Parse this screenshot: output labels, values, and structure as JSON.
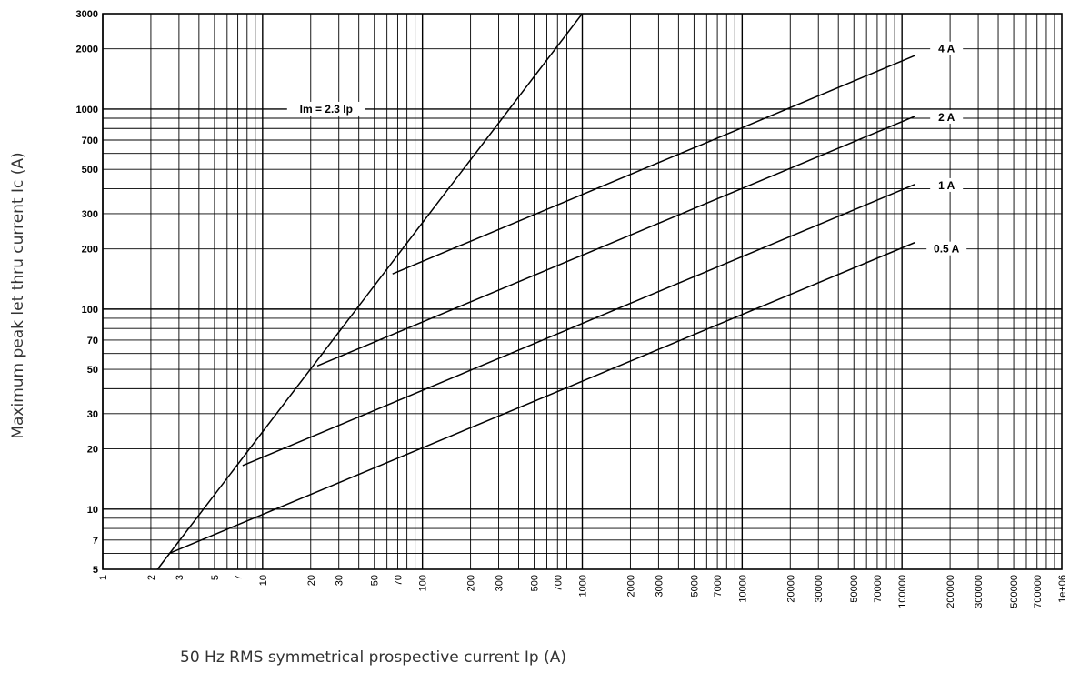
{
  "chart_data": {
    "type": "line",
    "xlabel": "50 Hz RMS symmetrical prospective current Ip (A)",
    "ylabel": "Maximum peak let thru current Ic (A)",
    "x_scale": "log",
    "y_scale": "log",
    "xlim": [
      1,
      1000000
    ],
    "ylim": [
      5,
      3000
    ],
    "grid": true,
    "x_ticks": [
      1,
      2,
      3,
      5,
      7,
      10,
      20,
      30,
      50,
      70,
      100,
      200,
      300,
      500,
      700,
      1000,
      2000,
      3000,
      5000,
      7000,
      10000,
      20000,
      30000,
      50000,
      70000,
      100000,
      200000,
      300000,
      500000,
      700000,
      1000000
    ],
    "x_tick_labels": [
      "1",
      "2",
      "3",
      "5",
      "7",
      "10",
      "20",
      "30",
      "50",
      "70",
      "100",
      "200",
      "300",
      "500",
      "700",
      "1000",
      "2000",
      "3000",
      "5000",
      "7000",
      "10000",
      "20000",
      "30000",
      "50000",
      "70000",
      "100000",
      "200000",
      "300000",
      "500000",
      "700000",
      "1e+06"
    ],
    "y_ticks": [
      5,
      7,
      10,
      20,
      30,
      50,
      70,
      100,
      200,
      300,
      500,
      700,
      1000,
      2000,
      3000
    ],
    "y_tick_labels": [
      "5",
      "7",
      "10",
      "20",
      "30",
      "50",
      "70",
      "100",
      "200",
      "300",
      "500",
      "700",
      "1000",
      "2000",
      "3000"
    ],
    "series": [
      {
        "name": "Im = 2.3 Ip",
        "points": [
          [
            2.2,
            5
          ],
          [
            1000,
            3000
          ]
        ]
      },
      {
        "name": "4 A",
        "points": [
          [
            65,
            150
          ],
          [
            120000,
            1850
          ]
        ]
      },
      {
        "name": "2 A",
        "points": [
          [
            22,
            52
          ],
          [
            120000,
            920
          ]
        ]
      },
      {
        "name": "1 A",
        "points": [
          [
            7.5,
            16.5
          ],
          [
            120000,
            420
          ]
        ]
      },
      {
        "name": "0.5 A",
        "points": [
          [
            2.6,
            6
          ],
          [
            120000,
            215
          ]
        ]
      }
    ],
    "annotations": [
      {
        "text": "Im = 2.3 Ip",
        "x": 25,
        "y": 1000
      },
      {
        "text": "4 A",
        "x": 190000,
        "y": 2000
      },
      {
        "text": "2 A",
        "x": 190000,
        "y": 910
      },
      {
        "text": "1 A",
        "x": 190000,
        "y": 415
      },
      {
        "text": "0.5 A",
        "x": 190000,
        "y": 200
      }
    ]
  }
}
